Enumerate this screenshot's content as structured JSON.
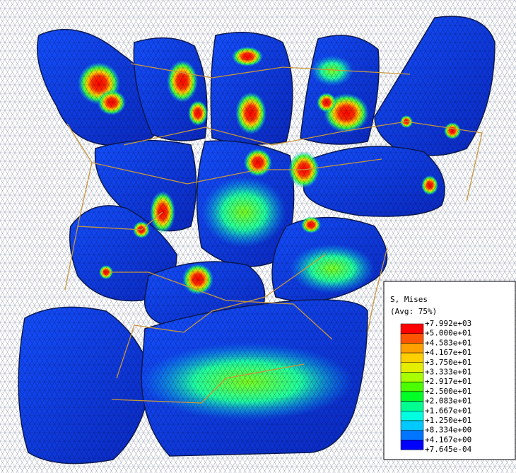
{
  "legend": {
    "title": "S, Mises",
    "subtitle": "(Avg: 75%)",
    "labels": [
      "+7.992e+03",
      "+5.000e+01",
      "+4.583e+01",
      "+4.167e+01",
      "+3.750e+01",
      "+3.333e+01",
      "+2.917e+01",
      "+2.500e+01",
      "+2.083e+01",
      "+1.667e+01",
      "+1.250e+01",
      "+8.334e+00",
      "+4.167e+00",
      "+7.645e-04"
    ],
    "colors": [
      "#ff0000",
      "#ff5400",
      "#ff9f00",
      "#ffcf00",
      "#e6ee00",
      "#a8ff00",
      "#4cff00",
      "#00ff26",
      "#00ff90",
      "#00ffe0",
      "#00c9ff",
      "#0075ff",
      "#0000ff"
    ]
  }
}
